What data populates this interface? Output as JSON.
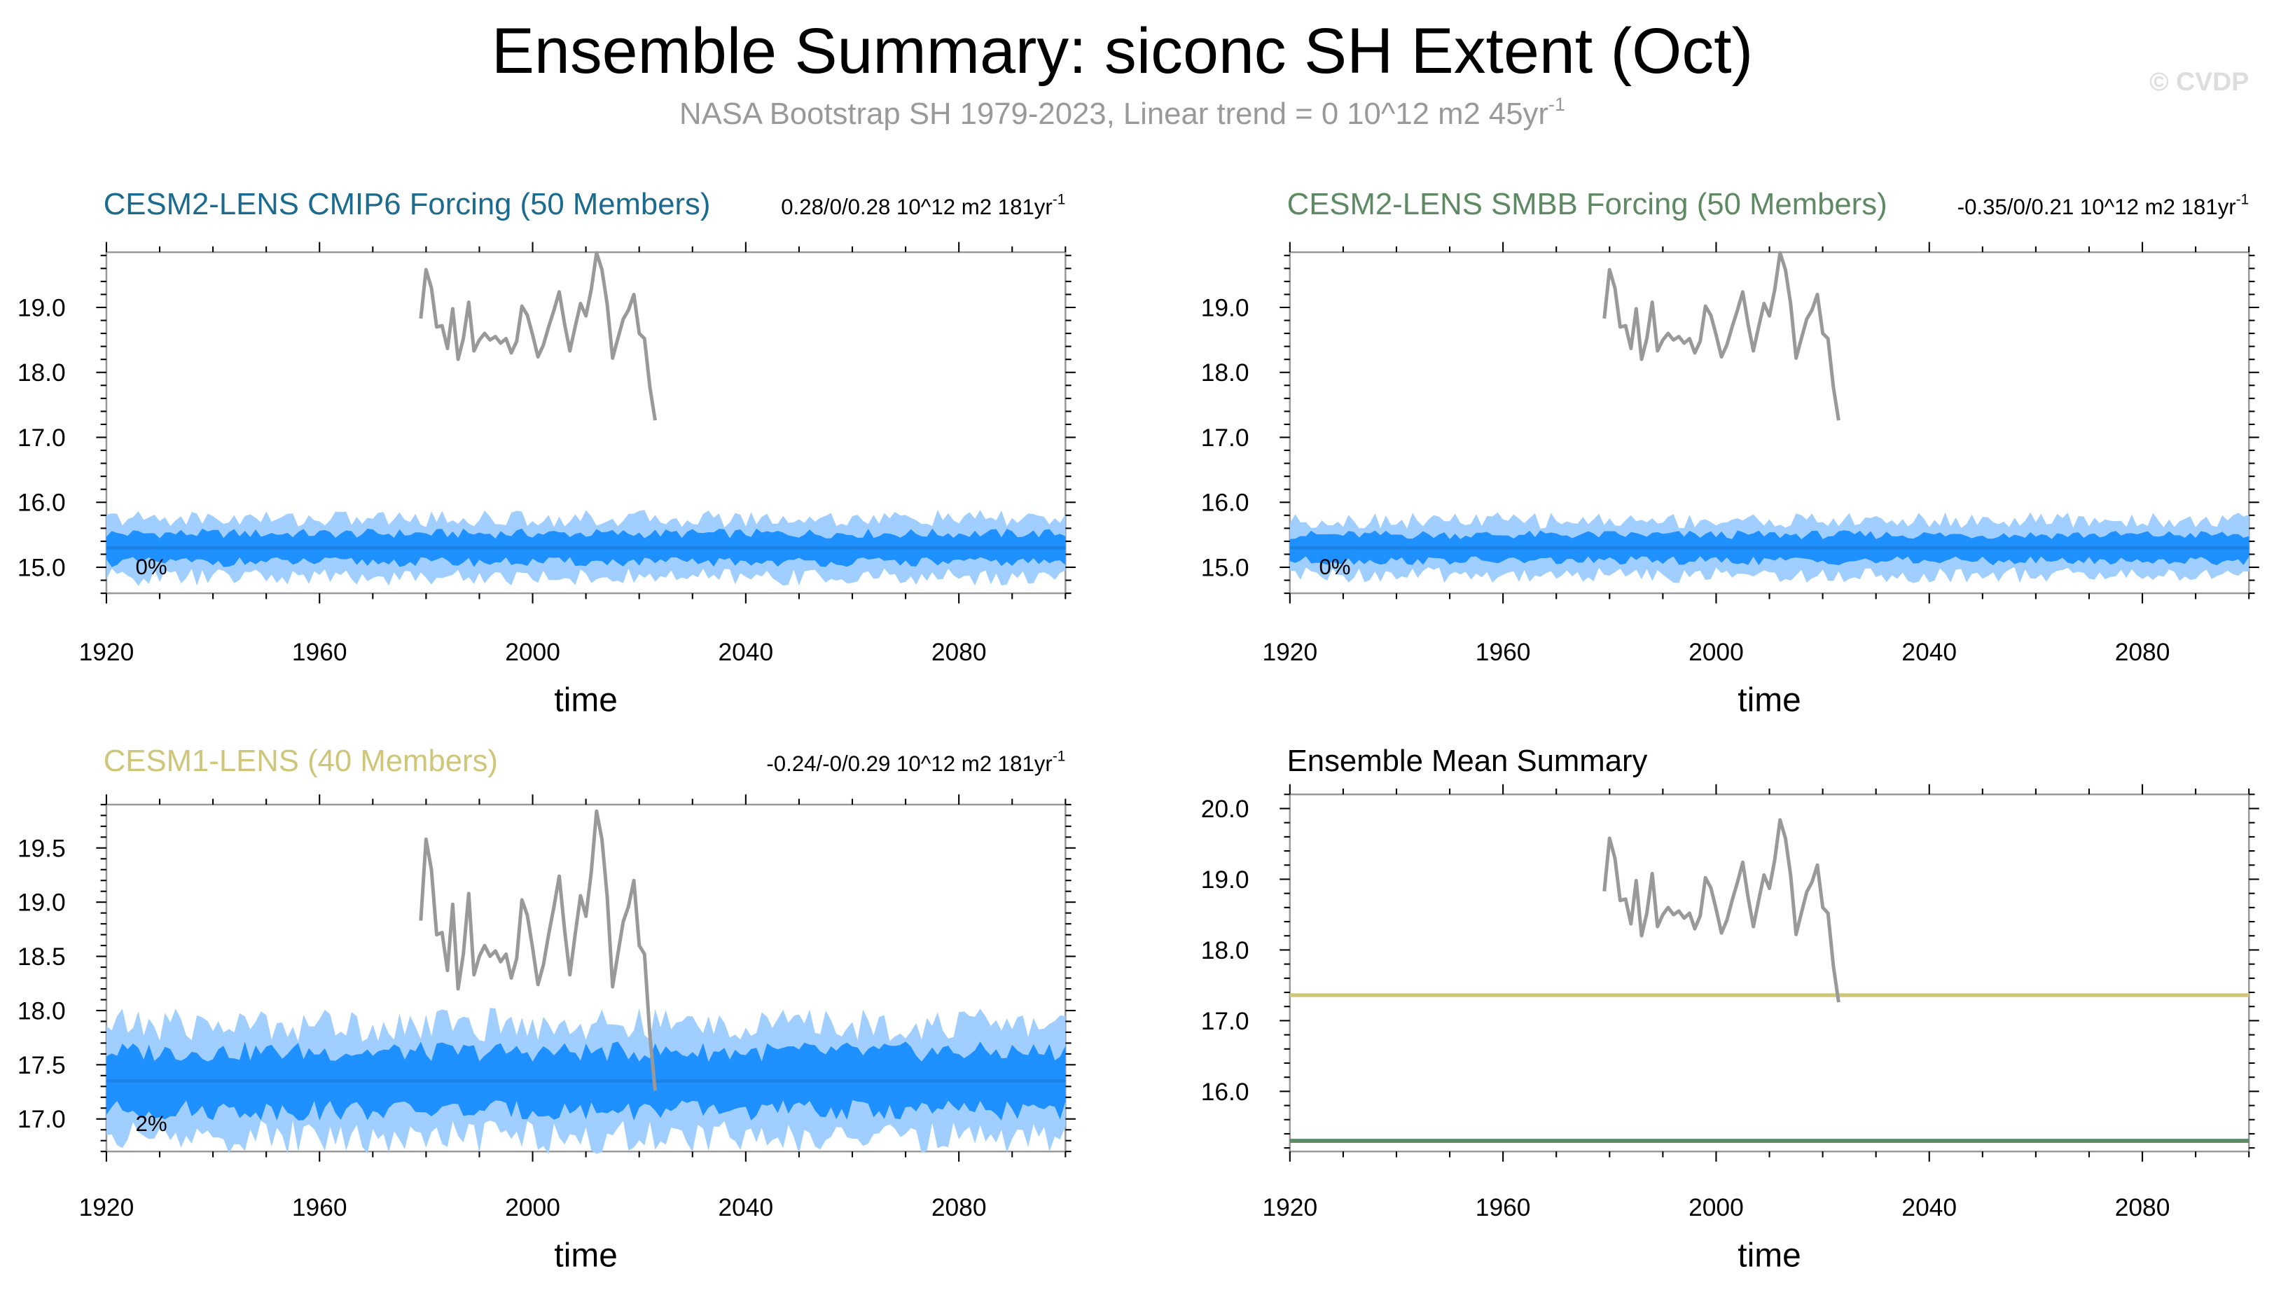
{
  "figure": {
    "title": "Ensemble Summary: siconc SH Extent (Oct)",
    "subtitle": "NASA Bootstrap SH 1979-2023, Linear trend = 0 10^12 m2 45yr",
    "subtitle_superscript": "-1",
    "watermark": "© CVDP"
  },
  "colors": {
    "obs_line": "#999999",
    "inner_band": "#1e90ff",
    "outer_band": "#a0cfff",
    "mean_line": "#1b82e6",
    "cesm2_cmip6": "#1a6b8f",
    "cesm2_smbb": "#5d8a63",
    "cesm1": "#cfc67a",
    "frame": "#999999"
  },
  "chart_data": [
    {
      "id": "cesm2-cmip6",
      "type": "area",
      "title": "CESM2-LENS CMIP6 Forcing (50 Members)",
      "title_color": "#1a6b8f",
      "trend_text": "0.28/0/0.28 10^12 m2 181yr",
      "trend_superscript": "-1",
      "percent_label": "0%",
      "xlabel": "time",
      "ylabel": "",
      "xlim": [
        1920,
        2100
      ],
      "ylim": [
        14.6,
        19.85
      ],
      "xticks": [
        1920,
        1960,
        2000,
        2040,
        2080
      ],
      "yticks": [
        15.0,
        16.0,
        17.0,
        18.0,
        19.0
      ],
      "ytick_labels": [
        "15.0",
        "16.0",
        "17.0",
        "18.0",
        "19.0"
      ],
      "ensemble": {
        "years": [
          1920,
          2100
        ],
        "mean": 15.3,
        "inner_halfwidth": 0.22,
        "outer_halfwidth": 0.45,
        "mean_trend": 0
      }
    },
    {
      "id": "cesm2-smbb",
      "type": "area",
      "title": "CESM2-LENS SMBB Forcing (50 Members)",
      "title_color": "#5d8a63",
      "trend_text": "-0.35/0/0.21 10^12 m2 181yr",
      "trend_superscript": "-1",
      "percent_label": "0%",
      "xlabel": "time",
      "ylabel": "",
      "xlim": [
        1920,
        2100
      ],
      "ylim": [
        14.6,
        19.85
      ],
      "xticks": [
        1920,
        1960,
        2000,
        2040,
        2080
      ],
      "yticks": [
        15.0,
        16.0,
        17.0,
        18.0,
        19.0
      ],
      "ytick_labels": [
        "15.0",
        "16.0",
        "17.0",
        "18.0",
        "19.0"
      ],
      "ensemble": {
        "years": [
          1920,
          2100
        ],
        "mean": 15.3,
        "inner_halfwidth": 0.2,
        "outer_halfwidth": 0.42,
        "mean_trend": 0
      }
    },
    {
      "id": "cesm1",
      "type": "area",
      "title": "CESM1-LENS (40 Members)",
      "title_color": "#cfc67a",
      "trend_text": "-0.24/-0/0.29 10^12 m2 181yr",
      "trend_superscript": "-1",
      "percent_label": "2%",
      "xlabel": "time",
      "ylabel": "",
      "xlim": [
        1920,
        2100
      ],
      "ylim": [
        16.7,
        19.9
      ],
      "xticks": [
        1920,
        1960,
        2000,
        2040,
        2080
      ],
      "yticks": [
        17.0,
        17.5,
        18.0,
        18.5,
        19.0,
        19.5
      ],
      "ytick_labels": [
        "17.0",
        "17.5",
        "18.0",
        "18.5",
        "19.0",
        "19.5"
      ],
      "ensemble": {
        "years": [
          1920,
          2100
        ],
        "mean": 17.35,
        "inner_halfwidth": 0.27,
        "outer_halfwidth": 0.52,
        "mean_trend": 0
      }
    },
    {
      "id": "ensemble-mean",
      "type": "line",
      "title": "Ensemble Mean Summary",
      "title_color": "#000000",
      "trend_text": "",
      "trend_superscript": "",
      "percent_label": "",
      "xlabel": "time",
      "ylabel": "",
      "xlim": [
        1920,
        2100
      ],
      "ylim": [
        15.15,
        20.2
      ],
      "xticks": [
        1920,
        1960,
        2000,
        2040,
        2080
      ],
      "yticks": [
        16.0,
        17.0,
        18.0,
        19.0,
        20.0
      ],
      "ytick_labels": [
        "16.0",
        "17.0",
        "18.0",
        "19.0",
        "20.0"
      ],
      "series": [
        {
          "color": "#cfc67a",
          "x": [
            1920,
            2100
          ],
          "y": [
            17.36,
            17.36
          ]
        },
        {
          "color": "#1a6b8f",
          "x": [
            1920,
            2100
          ],
          "y": [
            15.3,
            15.3
          ]
        },
        {
          "color": "#5d8a63",
          "x": [
            1920,
            2100
          ],
          "y": [
            15.3,
            15.3
          ]
        }
      ]
    }
  ],
  "observations": {
    "years": [
      1979,
      1980,
      1981,
      1982,
      1983,
      1984,
      1985,
      1986,
      1987,
      1988,
      1989,
      1990,
      1991,
      1992,
      1993,
      1994,
      1995,
      1996,
      1997,
      1998,
      1999,
      2000,
      2001,
      2002,
      2003,
      2004,
      2005,
      2006,
      2007,
      2008,
      2009,
      2010,
      2011,
      2012,
      2013,
      2014,
      2015,
      2016,
      2017,
      2018,
      2019,
      2020,
      2021,
      2022,
      2023
    ],
    "values": [
      18.83,
      19.58,
      19.3,
      18.7,
      18.72,
      18.37,
      18.98,
      18.2,
      18.52,
      19.08,
      18.33,
      18.5,
      18.6,
      18.5,
      18.55,
      18.45,
      18.52,
      18.3,
      18.48,
      19.02,
      18.88,
      18.58,
      18.24,
      18.42,
      18.7,
      18.96,
      19.24,
      18.74,
      18.33,
      18.71,
      19.06,
      18.87,
      19.28,
      19.84,
      19.58,
      19.05,
      18.22,
      18.52,
      18.82,
      18.96,
      19.2,
      18.6,
      18.52,
      17.77,
      17.26
    ]
  }
}
